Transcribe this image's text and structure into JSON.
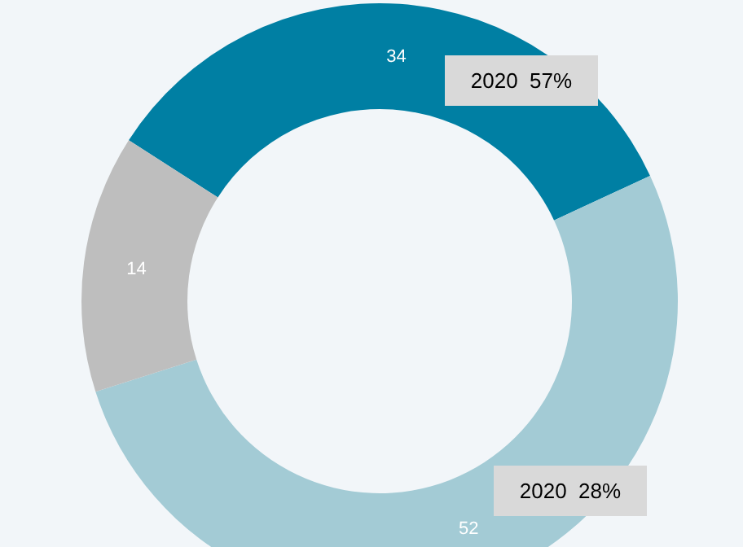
{
  "chart_data": {
    "type": "donut",
    "categories": [
      null,
      null,
      null
    ],
    "values": [
      34,
      52,
      14
    ],
    "colors": [
      "#007fa3",
      "#a3cbd5",
      "#bebebe"
    ],
    "data_labels": true,
    "annotations": [
      "2020  57%",
      "2020  28%"
    ]
  }
}
